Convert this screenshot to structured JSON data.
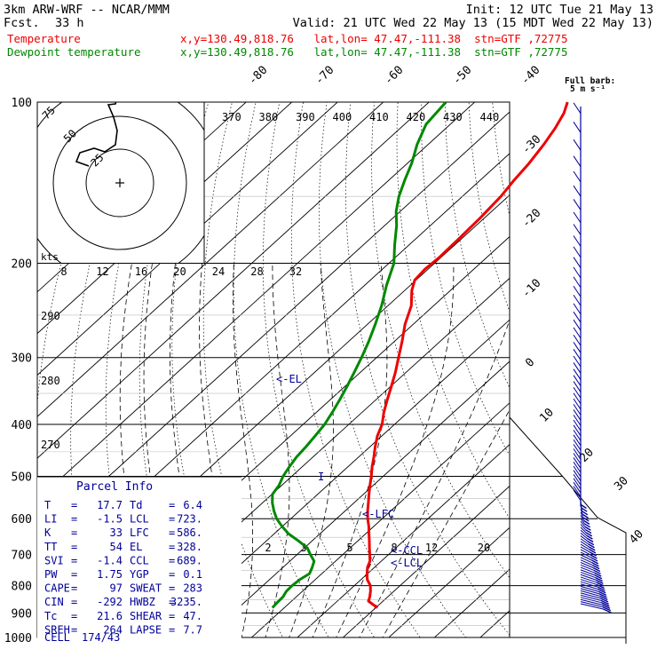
{
  "header": {
    "model": "3km ARW-WRF -- NCAR/MMM",
    "init": "Init: 12 UTC Tue 21 May 13",
    "fcst_label": "Fcst.",
    "fcst_value": "33 h",
    "valid": "Valid: 21 UTC Wed 22 May 13 (15 MDT Wed 22 May 13)",
    "temp_label": "Temperature",
    "temp_info": "x,y=130.49,818.76   lat,lon= 47.47,-111.38  stn=GTF ,72775",
    "dew_label": "Dewpoint temperature",
    "dew_info": "x,y=130.49,818.76   lat,lon= 47.47,-111.38  stn=GTF ,72775"
  },
  "colors": {
    "temperature": "#ee0000",
    "dewpoint": "#008800",
    "annotation": "#000099",
    "grid": "#000000"
  },
  "chart_data": {
    "type": "line",
    "y_scale": "log-pressure",
    "ylim": [
      1000,
      100
    ],
    "pressure_labels": [
      "100",
      "200",
      "300",
      "400",
      "500",
      "600",
      "700",
      "800",
      "900",
      "1000"
    ],
    "temperature_tick_labels": [
      "-80",
      "-70",
      "-60",
      "-50",
      "-40",
      "-30",
      "-20",
      "-10",
      "0",
      "10",
      "20",
      "30",
      "40"
    ],
    "theta_labels": [
      "370",
      "380",
      "390",
      "400",
      "410",
      "420",
      "430",
      "440"
    ],
    "theta_side_labels": [
      "290",
      "280",
      "270"
    ],
    "mixing_ratio_labels": [
      "2",
      "3",
      "5",
      "8",
      "12",
      "20"
    ],
    "hodograph_speed_labels": [
      "8",
      "12",
      "16",
      "20",
      "24",
      "28",
      "32"
    ],
    "hodograph_ring_labels": [
      "75",
      "50",
      "25"
    ],
    "kts_label": "kts",
    "series": [
      {
        "name": "Temperature",
        "points": [
          [
            880,
            30.4
          ],
          [
            870,
            28.9
          ],
          [
            855,
            26.8
          ],
          [
            840,
            26.1
          ],
          [
            820,
            24.9
          ],
          [
            800,
            23.5
          ],
          [
            780,
            21.4
          ],
          [
            760,
            19.9
          ],
          [
            740,
            18.5
          ],
          [
            720,
            17.5
          ],
          [
            700,
            15.9
          ],
          [
            680,
            14.2
          ],
          [
            660,
            12.5
          ],
          [
            640,
            10.7
          ],
          [
            620,
            8.9
          ],
          [
            600,
            6.8
          ],
          [
            580,
            4.9
          ],
          [
            560,
            3.1
          ],
          [
            540,
            1.2
          ],
          [
            520,
            -0.7
          ],
          [
            500,
            -2.6
          ],
          [
            480,
            -4.7
          ],
          [
            460,
            -6.7
          ],
          [
            440,
            -8.9
          ],
          [
            420,
            -11.0
          ],
          [
            400,
            -12.7
          ],
          [
            380,
            -15.2
          ],
          [
            360,
            -17.5
          ],
          [
            340,
            -19.8
          ],
          [
            320,
            -22.3
          ],
          [
            300,
            -25.2
          ],
          [
            280,
            -28.3
          ],
          [
            260,
            -31.8
          ],
          [
            240,
            -34.9
          ],
          [
            225,
            -38.4
          ],
          [
            215,
            -40.3
          ],
          [
            205,
            -40.7
          ],
          [
            195,
            -40.4
          ],
          [
            180,
            -40.6
          ],
          [
            165,
            -40.9
          ],
          [
            150,
            -41.6
          ],
          [
            140,
            -42.6
          ],
          [
            130,
            -43.4
          ],
          [
            120,
            -44.7
          ],
          [
            112,
            -46.1
          ],
          [
            105,
            -47.8
          ],
          [
            100,
            -49.7
          ]
        ]
      },
      {
        "name": "Dewpoint temperature",
        "points": [
          [
            880,
            7.4
          ],
          [
            860,
            7.2
          ],
          [
            840,
            7.1
          ],
          [
            820,
            6.5
          ],
          [
            800,
            6.4
          ],
          [
            780,
            6.6
          ],
          [
            760,
            7.3
          ],
          [
            740,
            6.4
          ],
          [
            720,
            5.3
          ],
          [
            700,
            2.9
          ],
          [
            680,
            0.6
          ],
          [
            660,
            -3.0
          ],
          [
            640,
            -6.9
          ],
          [
            620,
            -10.1
          ],
          [
            600,
            -13.1
          ],
          [
            580,
            -15.6
          ],
          [
            560,
            -17.9
          ],
          [
            540,
            -19.9
          ],
          [
            520,
            -20.6
          ],
          [
            500,
            -21.9
          ],
          [
            480,
            -22.8
          ],
          [
            460,
            -23.6
          ],
          [
            440,
            -24.0
          ],
          [
            420,
            -24.6
          ],
          [
            400,
            -25.3
          ],
          [
            380,
            -26.5
          ],
          [
            360,
            -27.9
          ],
          [
            340,
            -29.5
          ],
          [
            320,
            -31.3
          ],
          [
            300,
            -33.3
          ],
          [
            280,
            -35.6
          ],
          [
            260,
            -38.3
          ],
          [
            240,
            -41.4
          ],
          [
            220,
            -45.2
          ],
          [
            200,
            -48.9
          ],
          [
            185,
            -53.1
          ],
          [
            170,
            -57.4
          ],
          [
            160,
            -60.9
          ],
          [
            150,
            -63.9
          ],
          [
            140,
            -66.5
          ],
          [
            130,
            -69.1
          ],
          [
            120,
            -72.4
          ],
          [
            110,
            -75.3
          ],
          [
            100,
            -76.3
          ]
        ]
      }
    ],
    "level_annotations": [
      "<-EL",
      "<-LFC",
      "<-CCL",
      "<-LCL"
    ],
    "barb_legend_label": "Full barb:",
    "barb_legend_value": "5 m s⁻¹"
  },
  "parcel_info": {
    "title": "Parcel Info",
    "rows": [
      [
        "T",
        "17.7",
        "Td",
        "6.4"
      ],
      [
        "LI",
        "-1.5",
        "LCL",
        "723."
      ],
      [
        "K",
        "33",
        "LFC",
        "586."
      ],
      [
        "TT",
        "54",
        "EL",
        "328."
      ],
      [
        "SVI",
        "-1.4",
        "CCL",
        "689."
      ],
      [
        "PW",
        "1.75",
        "YGP",
        "0.1"
      ],
      [
        "CAPE",
        "97",
        "SWEAT",
        "283"
      ],
      [
        "CIN",
        "-292",
        "HWBZ",
        "3235."
      ],
      [
        "Tc",
        "21.6",
        "SHEAR",
        "47."
      ],
      [
        "SREH",
        "264",
        "LAPSE",
        "7.7"
      ]
    ],
    "cell_label": "CELL",
    "cell_value": "174/43"
  }
}
